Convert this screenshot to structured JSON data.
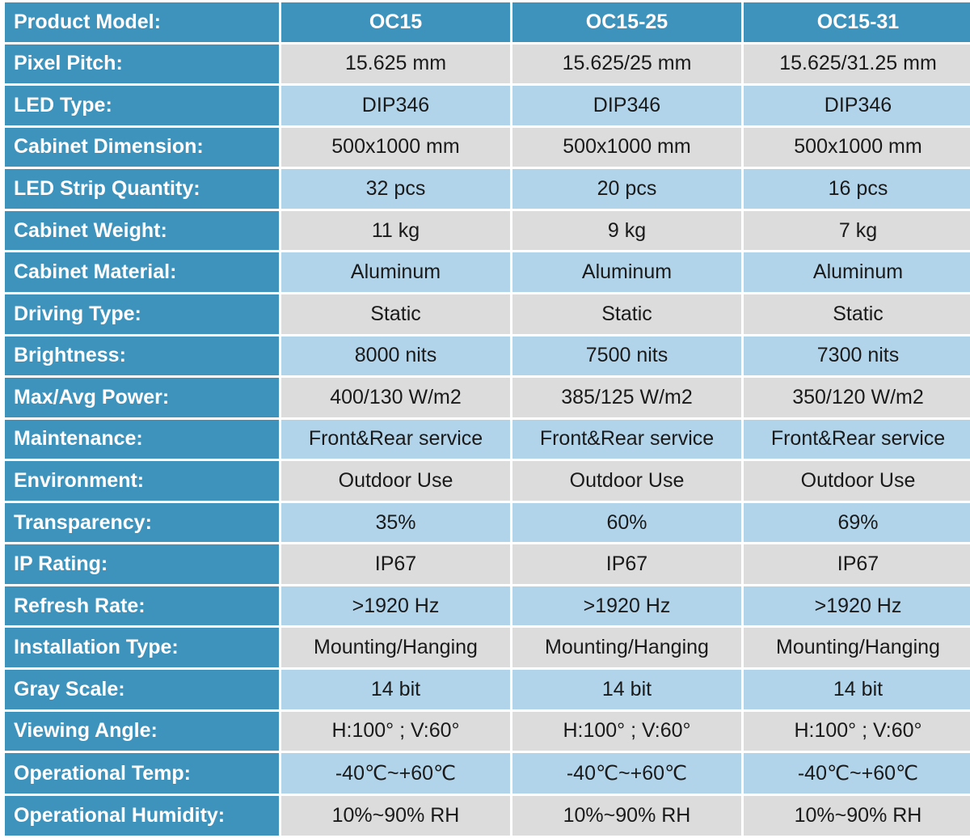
{
  "header": {
    "label": "Product Model:",
    "models": [
      "OC15",
      "OC15-25",
      "OC15-31"
    ]
  },
  "rows": [
    {
      "label": "Pixel Pitch:",
      "values": [
        "15.625 mm",
        "15.625/25 mm",
        "15.625/31.25 mm"
      ]
    },
    {
      "label": "LED Type:",
      "values": [
        "DIP346",
        "DIP346",
        "DIP346"
      ]
    },
    {
      "label": "Cabinet Dimension:",
      "values": [
        "500x1000 mm",
        "500x1000 mm",
        "500x1000 mm"
      ]
    },
    {
      "label": "LED Strip Quantity:",
      "values": [
        "32 pcs",
        "20 pcs",
        "16 pcs"
      ]
    },
    {
      "label": "Cabinet Weight:",
      "values": [
        "11 kg",
        "9 kg",
        "7 kg"
      ]
    },
    {
      "label": "Cabinet Material:",
      "values": [
        "Aluminum",
        "Aluminum",
        "Aluminum"
      ]
    },
    {
      "label": "Driving Type:",
      "values": [
        "Static",
        "Static",
        "Static"
      ]
    },
    {
      "label": "Brightness:",
      "values": [
        "8000 nits",
        "7500 nits",
        "7300 nits"
      ]
    },
    {
      "label": "Max/Avg Power:",
      "values": [
        "400/130 W/m2",
        "385/125 W/m2",
        "350/120 W/m2"
      ]
    },
    {
      "label": "Maintenance:",
      "values": [
        "Front&Rear service",
        "Front&Rear service",
        "Front&Rear service"
      ]
    },
    {
      "label": "Environment:",
      "values": [
        "Outdoor Use",
        "Outdoor Use",
        "Outdoor Use"
      ]
    },
    {
      "label": "Transparency:",
      "values": [
        "35%",
        "60%",
        "69%"
      ]
    },
    {
      "label": "IP Rating:",
      "values": [
        "IP67",
        "IP67",
        "IP67"
      ]
    },
    {
      "label": "Refresh Rate:",
      "values": [
        ">1920 Hz",
        ">1920 Hz",
        ">1920 Hz"
      ]
    },
    {
      "label": "Installation Type:",
      "values": [
        "Mounting/Hanging",
        "Mounting/Hanging",
        "Mounting/Hanging"
      ]
    },
    {
      "label": "Gray Scale:",
      "values": [
        "14 bit",
        "14 bit",
        "14 bit"
      ]
    },
    {
      "label": "Viewing Angle:",
      "values": [
        "H:100° ; V:60°",
        "H:100° ; V:60°",
        "H:100° ; V:60°"
      ]
    },
    {
      "label": "Operational Temp:",
      "values": [
        "-40℃~+60℃",
        "-40℃~+60℃",
        "-40℃~+60℃"
      ]
    },
    {
      "label": "Operational Humidity:",
      "values": [
        "10%~90% RH",
        "10%~90% RH",
        "10%~90% RH"
      ]
    }
  ],
  "colors": {
    "header_blue": "#3e93bd",
    "row_gray": "#dcdcdc",
    "row_light_blue": "#b2d4ea"
  }
}
